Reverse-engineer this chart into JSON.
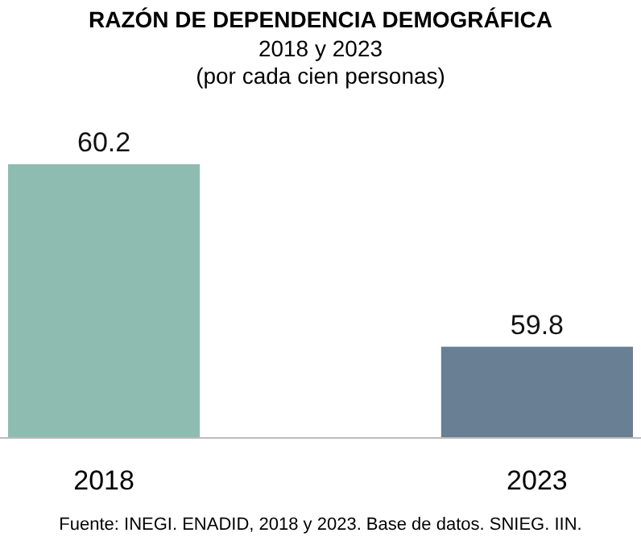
{
  "chart_data": {
    "type": "bar",
    "title": "RAZÓN DE DEPENDENCIA DEMOGRÁFICA",
    "subtitle": "2018 y 2023\n(por cada cien personas)",
    "categories": [
      "2018",
      "2023"
    ],
    "values": [
      60.2,
      59.8
    ],
    "colors": [
      "#8fbcb0",
      "#687f94"
    ],
    "ylim": [
      59.6,
      60.2
    ],
    "data_labels": true,
    "annotations": [
      "Fuente: INEGI. ENADID, 2018 y 2023. Base de datos. SNIEG. IIN."
    ]
  }
}
